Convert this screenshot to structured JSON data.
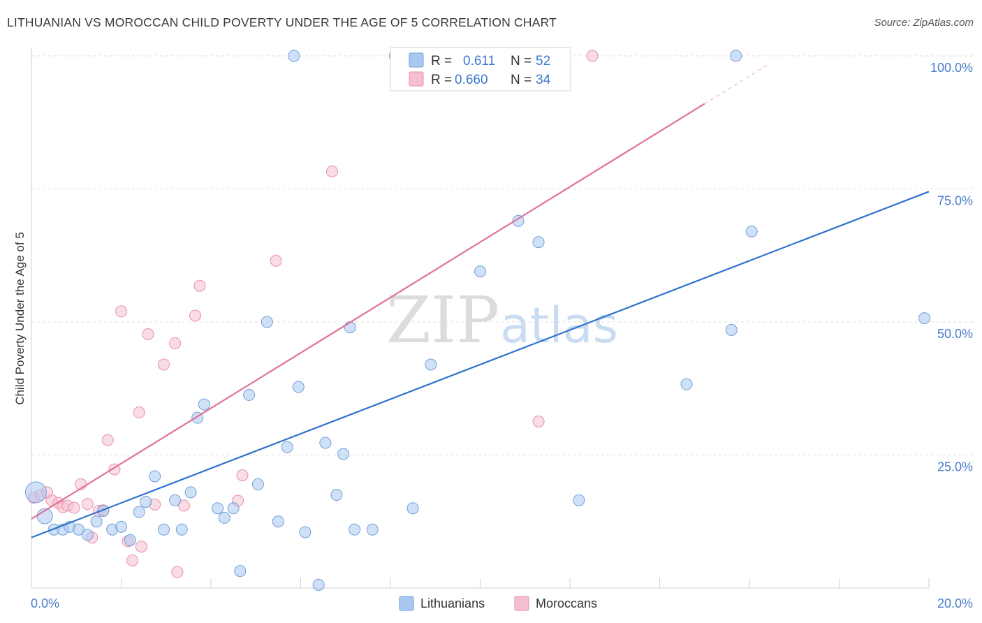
{
  "title": "LITHUANIAN VS MOROCCAN CHILD POVERTY UNDER THE AGE OF 5 CORRELATION CHART",
  "source": "Source: ZipAtlas.com",
  "watermark": {
    "zip": "ZIP",
    "atlas": "atlas"
  },
  "colors": {
    "blue_fill": "#a9c8f0",
    "blue_stroke": "#6f9fd8",
    "blue_line": "#2f72cc",
    "pink_fill": "#f6bfd0",
    "pink_stroke": "#e98fac",
    "pink_line": "#e0709a",
    "tick_text": "#4a7cc9",
    "grid": "#dddddd"
  },
  "stats": {
    "blue": {
      "r_label": "R = ",
      "r_value": "0.611",
      "n_label": "N = ",
      "n_value": "52"
    },
    "pink": {
      "r_label": "R = ",
      "r_value": "0.660",
      "n_label": "N = ",
      "n_value": "34"
    }
  },
  "chart_data": {
    "type": "scatter",
    "title": "LITHUANIAN VS MOROCCAN CHILD POVERTY UNDER THE AGE OF 5 CORRELATION CHART",
    "xlabel": "",
    "ylabel": "Child Poverty Under the Age of 5",
    "xlim": [
      0,
      20
    ],
    "ylim": [
      0,
      100
    ],
    "x_tick_labels": [
      "0.0%",
      "20.0%"
    ],
    "y_ticks": [
      25,
      50,
      75,
      100
    ],
    "y_tick_labels": [
      "25.0%",
      "50.0%",
      "75.0%",
      "100.0%"
    ],
    "grid": true,
    "legend": {
      "placement": "bottom-center",
      "items": [
        "Lithuanians",
        "Moroccans"
      ]
    },
    "series": [
      {
        "name": "Lithuanians",
        "color": "#a9c8f0",
        "trend": {
          "x": [
            0,
            20
          ],
          "y": [
            9.5,
            74.5
          ]
        },
        "points": [
          {
            "x": 0.1,
            "y": 18
          },
          {
            "x": 0.3,
            "y": 13.5
          },
          {
            "x": 0.5,
            "y": 11
          },
          {
            "x": 0.7,
            "y": 11
          },
          {
            "x": 0.85,
            "y": 11.5
          },
          {
            "x": 1.05,
            "y": 11
          },
          {
            "x": 1.25,
            "y": 10
          },
          {
            "x": 1.45,
            "y": 12.5
          },
          {
            "x": 1.6,
            "y": 14.5
          },
          {
            "x": 1.8,
            "y": 11
          },
          {
            "x": 2.0,
            "y": 11.5
          },
          {
            "x": 2.2,
            "y": 9
          },
          {
            "x": 2.4,
            "y": 14.3
          },
          {
            "x": 2.55,
            "y": 16.2
          },
          {
            "x": 2.75,
            "y": 21
          },
          {
            "x": 2.95,
            "y": 11
          },
          {
            "x": 3.2,
            "y": 16.5
          },
          {
            "x": 3.35,
            "y": 11
          },
          {
            "x": 3.55,
            "y": 18
          },
          {
            "x": 3.7,
            "y": 32
          },
          {
            "x": 3.85,
            "y": 34.5
          },
          {
            "x": 4.15,
            "y": 15
          },
          {
            "x": 4.3,
            "y": 13.2
          },
          {
            "x": 4.5,
            "y": 15
          },
          {
            "x": 4.65,
            "y": 3.2
          },
          {
            "x": 4.85,
            "y": 36.3
          },
          {
            "x": 5.05,
            "y": 19.5
          },
          {
            "x": 5.25,
            "y": 50
          },
          {
            "x": 5.5,
            "y": 12.5
          },
          {
            "x": 5.7,
            "y": 26.5
          },
          {
            "x": 5.85,
            "y": 100
          },
          {
            "x": 5.95,
            "y": 37.8
          },
          {
            "x": 6.1,
            "y": 10.5
          },
          {
            "x": 6.4,
            "y": 0.6
          },
          {
            "x": 6.55,
            "y": 27.3
          },
          {
            "x": 6.8,
            "y": 17.5
          },
          {
            "x": 6.95,
            "y": 25.2
          },
          {
            "x": 7.1,
            "y": 49
          },
          {
            "x": 7.2,
            "y": 11
          },
          {
            "x": 7.6,
            "y": 11
          },
          {
            "x": 8.1,
            "y": 100
          },
          {
            "x": 8.5,
            "y": 15
          },
          {
            "x": 8.9,
            "y": 42
          },
          {
            "x": 10.0,
            "y": 59.5
          },
          {
            "x": 10.85,
            "y": 69
          },
          {
            "x": 11.3,
            "y": 65
          },
          {
            "x": 12.2,
            "y": 16.5
          },
          {
            "x": 14.6,
            "y": 38.3
          },
          {
            "x": 15.6,
            "y": 48.5
          },
          {
            "x": 15.7,
            "y": 100
          },
          {
            "x": 16.05,
            "y": 67
          },
          {
            "x": 19.9,
            "y": 50.7
          }
        ]
      },
      {
        "name": "Moroccans",
        "color": "#f6bfd0",
        "trend": {
          "x": [
            0,
            15
          ],
          "y": [
            13,
            91
          ]
        },
        "points": [
          {
            "x": 0.05,
            "y": 17
          },
          {
            "x": 0.2,
            "y": 17.5
          },
          {
            "x": 0.45,
            "y": 16.5
          },
          {
            "x": 0.6,
            "y": 16
          },
          {
            "x": 0.7,
            "y": 15.2
          },
          {
            "x": 0.8,
            "y": 15.5
          },
          {
            "x": 0.95,
            "y": 15.1
          },
          {
            "x": 1.1,
            "y": 19.5
          },
          {
            "x": 1.25,
            "y": 15.8
          },
          {
            "x": 1.35,
            "y": 9.5
          },
          {
            "x": 1.5,
            "y": 14.5
          },
          {
            "x": 1.6,
            "y": 14.6
          },
          {
            "x": 1.7,
            "y": 27.8
          },
          {
            "x": 1.85,
            "y": 22.3
          },
          {
            "x": 2.0,
            "y": 52
          },
          {
            "x": 2.15,
            "y": 8.8
          },
          {
            "x": 2.25,
            "y": 5.2
          },
          {
            "x": 2.45,
            "y": 7.8
          },
          {
            "x": 2.4,
            "y": 33
          },
          {
            "x": 2.6,
            "y": 47.7
          },
          {
            "x": 2.75,
            "y": 15.7
          },
          {
            "x": 2.95,
            "y": 42
          },
          {
            "x": 3.2,
            "y": 46
          },
          {
            "x": 3.25,
            "y": 3
          },
          {
            "x": 3.4,
            "y": 15.5
          },
          {
            "x": 3.65,
            "y": 51.2
          },
          {
            "x": 3.75,
            "y": 56.8
          },
          {
            "x": 4.6,
            "y": 16.4
          },
          {
            "x": 4.7,
            "y": 21.2
          },
          {
            "x": 5.45,
            "y": 61.5
          },
          {
            "x": 6.7,
            "y": 78.3
          },
          {
            "x": 11.3,
            "y": 31.3
          },
          {
            "x": 12.5,
            "y": 100
          },
          {
            "x": 0.35,
            "y": 18
          }
        ]
      }
    ]
  },
  "legend": {
    "lithuanians": "Lithuanians",
    "moroccans": "Moroccans"
  }
}
